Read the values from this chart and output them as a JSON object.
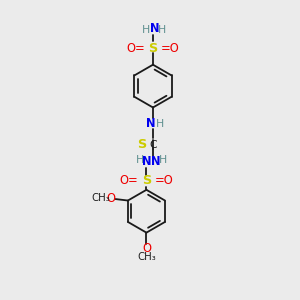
{
  "bg_color": "#ebebeb",
  "bond_color": "#1a1a1a",
  "N_color": "#0000ee",
  "O_color": "#ee0000",
  "S_color": "#cccc00",
  "H_color": "#5f9090",
  "C_color": "#1a1a1a",
  "figsize": [
    3.0,
    3.0
  ],
  "dpi": 100,
  "xlim": [
    0,
    10
  ],
  "ylim": [
    0,
    10
  ],
  "ring_r": 0.72,
  "ring_inner_off": 0.115,
  "lw": 1.3,
  "fs": 7.8
}
